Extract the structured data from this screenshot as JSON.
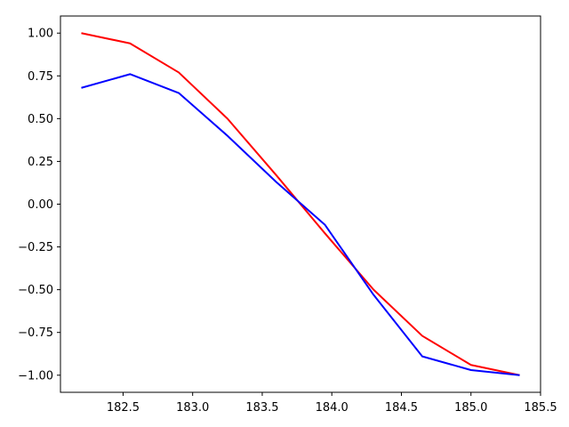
{
  "chart_data": {
    "type": "line",
    "title": "",
    "xlabel": "",
    "ylabel": "",
    "xlim": [
      182.05,
      185.5
    ],
    "ylim": [
      -1.1,
      1.1
    ],
    "grid": false,
    "x_ticks": [
      182.5,
      183.0,
      183.5,
      184.0,
      184.5,
      185.0,
      185.5
    ],
    "x_tick_labels": [
      "182.5",
      "183.0",
      "183.5",
      "184.0",
      "184.5",
      "185.0",
      "185.5"
    ],
    "y_ticks": [
      -1.0,
      -0.75,
      -0.5,
      -0.25,
      0.0,
      0.25,
      0.5,
      0.75,
      1.0
    ],
    "y_tick_labels": [
      "−1.00",
      "−0.75",
      "−0.50",
      "−0.25",
      "0.00",
      "0.25",
      "0.50",
      "0.75",
      "1.00"
    ],
    "series": [
      {
        "color": "#ff0000",
        "x": [
          182.2,
          182.55,
          182.9,
          183.25,
          183.6,
          183.95,
          184.3,
          184.65,
          185.0,
          185.35
        ],
        "y": [
          1.0,
          0.94,
          0.77,
          0.5,
          0.17,
          -0.17,
          -0.5,
          -0.77,
          -0.94,
          -1.0
        ]
      },
      {
        "color": "#0000ff",
        "x": [
          182.2,
          182.55,
          182.9,
          183.25,
          183.6,
          183.95,
          184.3,
          184.65,
          185.0,
          185.35
        ],
        "y": [
          0.68,
          0.76,
          0.65,
          0.4,
          0.13,
          -0.12,
          -0.53,
          -0.89,
          -0.97,
          -1.0
        ]
      }
    ]
  }
}
